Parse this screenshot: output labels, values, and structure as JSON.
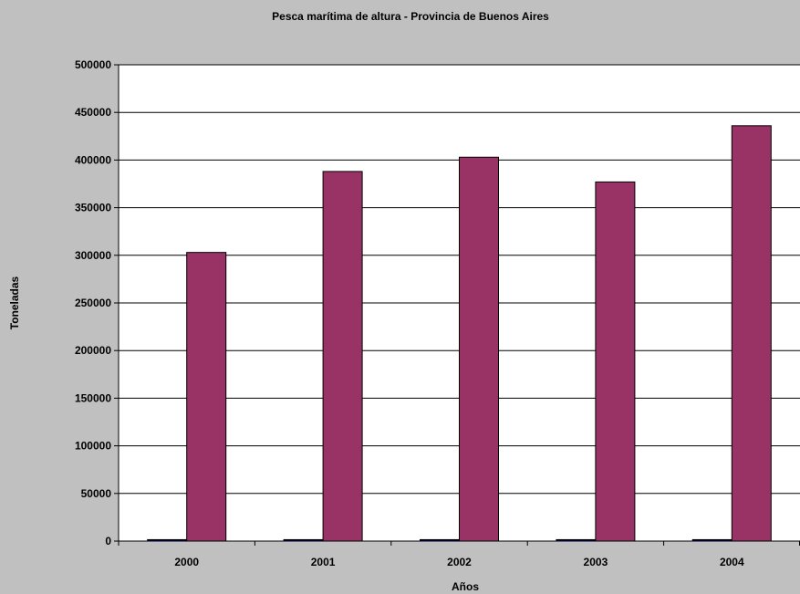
{
  "chart_data": {
    "type": "bar",
    "title": "Pesca marítima de altura - Provincia de Buenos Aires",
    "xlabel": "Años",
    "ylabel": "Toneladas",
    "categories": [
      "2000",
      "2001",
      "2002",
      "2003",
      "2004"
    ],
    "series": [
      {
        "values": [
          1500,
          1500,
          1500,
          1500,
          1500
        ],
        "color": "#000080"
      },
      {
        "values": [
          303000,
          388000,
          403000,
          377000,
          436000
        ],
        "color": "#993366"
      }
    ],
    "ylim": [
      0,
      500000
    ],
    "yticks": [
      0,
      50000,
      100000,
      150000,
      200000,
      250000,
      300000,
      350000,
      400000,
      450000,
      500000
    ],
    "grid": true,
    "legend": "none",
    "colors": {
      "background": "#c0c0c0",
      "plot_area": "#ffffff",
      "gridline": "#000000"
    }
  }
}
